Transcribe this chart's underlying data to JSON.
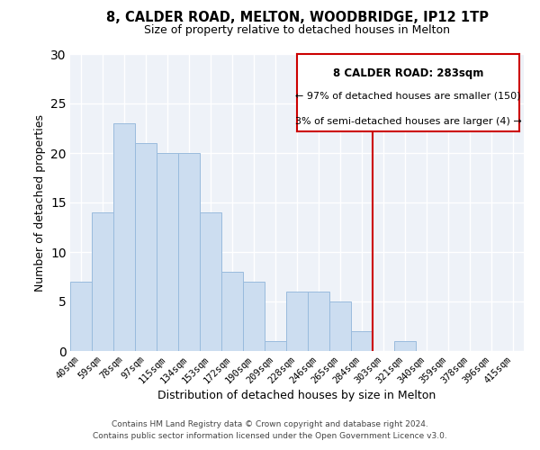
{
  "title": "8, CALDER ROAD, MELTON, WOODBRIDGE, IP12 1TP",
  "subtitle": "Size of property relative to detached houses in Melton",
  "xlabel": "Distribution of detached houses by size in Melton",
  "ylabel": "Number of detached properties",
  "bar_labels": [
    "40sqm",
    "59sqm",
    "78sqm",
    "97sqm",
    "115sqm",
    "134sqm",
    "153sqm",
    "172sqm",
    "190sqm",
    "209sqm",
    "228sqm",
    "246sqm",
    "265sqm",
    "284sqm",
    "303sqm",
    "321sqm",
    "340sqm",
    "359sqm",
    "378sqm",
    "396sqm",
    "415sqm"
  ],
  "bar_values": [
    7,
    14,
    23,
    21,
    20,
    20,
    14,
    8,
    7,
    1,
    6,
    6,
    5,
    2,
    0,
    1,
    0,
    0,
    0,
    0,
    0
  ],
  "bar_color": "#ccddf0",
  "bar_edge_color": "#99bbdd",
  "grid_color": "#cccccc",
  "vline_index": 13,
  "vline_color": "#cc0000",
  "annotation_title": "8 CALDER ROAD: 283sqm",
  "annotation_line1": "← 97% of detached houses are smaller (150)",
  "annotation_line2": "3% of semi-detached houses are larger (4) →",
  "ylim": [
    0,
    30
  ],
  "yticks": [
    0,
    5,
    10,
    15,
    20,
    25,
    30
  ],
  "footnote1": "Contains HM Land Registry data © Crown copyright and database right 2024.",
  "footnote2": "Contains public sector information licensed under the Open Government Licence v3.0."
}
